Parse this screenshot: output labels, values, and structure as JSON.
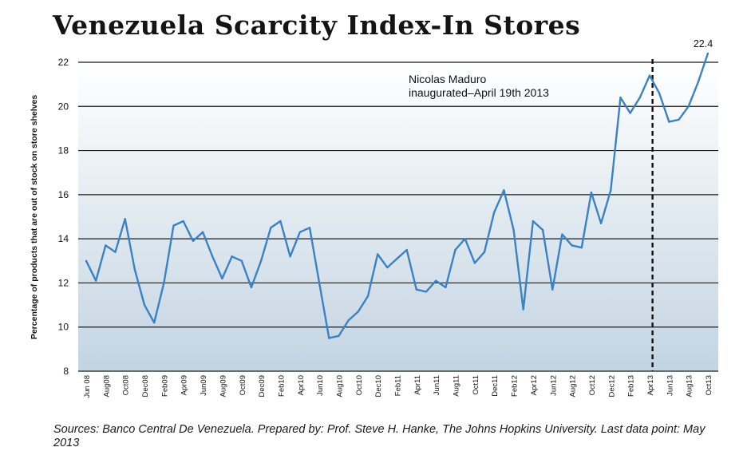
{
  "title": "Venezuela Scarcity Index-In Stores",
  "source_note": "Sources: Banco Central De Venezuela. Prepared by: Prof. Steve H. Hanke, The Johns Hopkins University. Last data point: May 2013",
  "chart_data": {
    "type": "line",
    "title": "Venezuela Scarcity Index-In Stores",
    "ylabel": "Percentage of products that are out of stock on store shelves",
    "xlabel": "",
    "ylim": [
      8,
      22
    ],
    "yticks": [
      8,
      10,
      12,
      14,
      16,
      18,
      20,
      22
    ],
    "grid": "horizontal",
    "x_tick_labels": [
      "Jun 08",
      "Aug08",
      "Oct08",
      "Dec08",
      "Feb09",
      "Apr09",
      "Jun09",
      "Aug09",
      "Oct09",
      "Dec09",
      "Feb10",
      "Apr10",
      "Jun10",
      "Aug10",
      "Oct10",
      "Dec10",
      "Feb11",
      "Apr11",
      "Jun11",
      "Aug11",
      "Oct11",
      "Dec11",
      "Feb12",
      "Apr12",
      "Jun12",
      "Aug12",
      "Oct12",
      "Dec12",
      "Feb13",
      "Apr13",
      "Jun13",
      "Aug13",
      "Oct13"
    ],
    "series": [
      {
        "color": "#3a82c4",
        "values": [
          13.0,
          12.1,
          13.7,
          13.4,
          14.9,
          12.6,
          11.0,
          10.2,
          12.0,
          14.6,
          14.8,
          13.9,
          14.3,
          13.2,
          12.2,
          13.2,
          13.0,
          11.8,
          13.0,
          14.5,
          14.8,
          13.2,
          14.3,
          14.5,
          12.0,
          9.5,
          9.6,
          10.3,
          10.7,
          11.4,
          13.3,
          12.7,
          13.1,
          13.5,
          11.7,
          11.6,
          12.1,
          11.8,
          13.5,
          14.0,
          12.9,
          13.4,
          15.2,
          16.2,
          14.4,
          10.8,
          14.8,
          14.4,
          11.7,
          14.2,
          13.7,
          13.6,
          16.1,
          14.7,
          16.2,
          20.4,
          19.7,
          20.4,
          21.4,
          20.6,
          19.3,
          19.4,
          20.0,
          21.1,
          22.4
        ]
      }
    ],
    "annotations": [
      {
        "text_line1": "Nicolas Maduro",
        "text_line2": "inaugurated–April 19th 2013",
        "x_index": 58.3,
        "style": "dashed-vertical"
      },
      {
        "text": "22.4",
        "label_for": "last-point"
      }
    ],
    "background_gradient": [
      "#ffffff",
      "#c3d4e2"
    ]
  }
}
